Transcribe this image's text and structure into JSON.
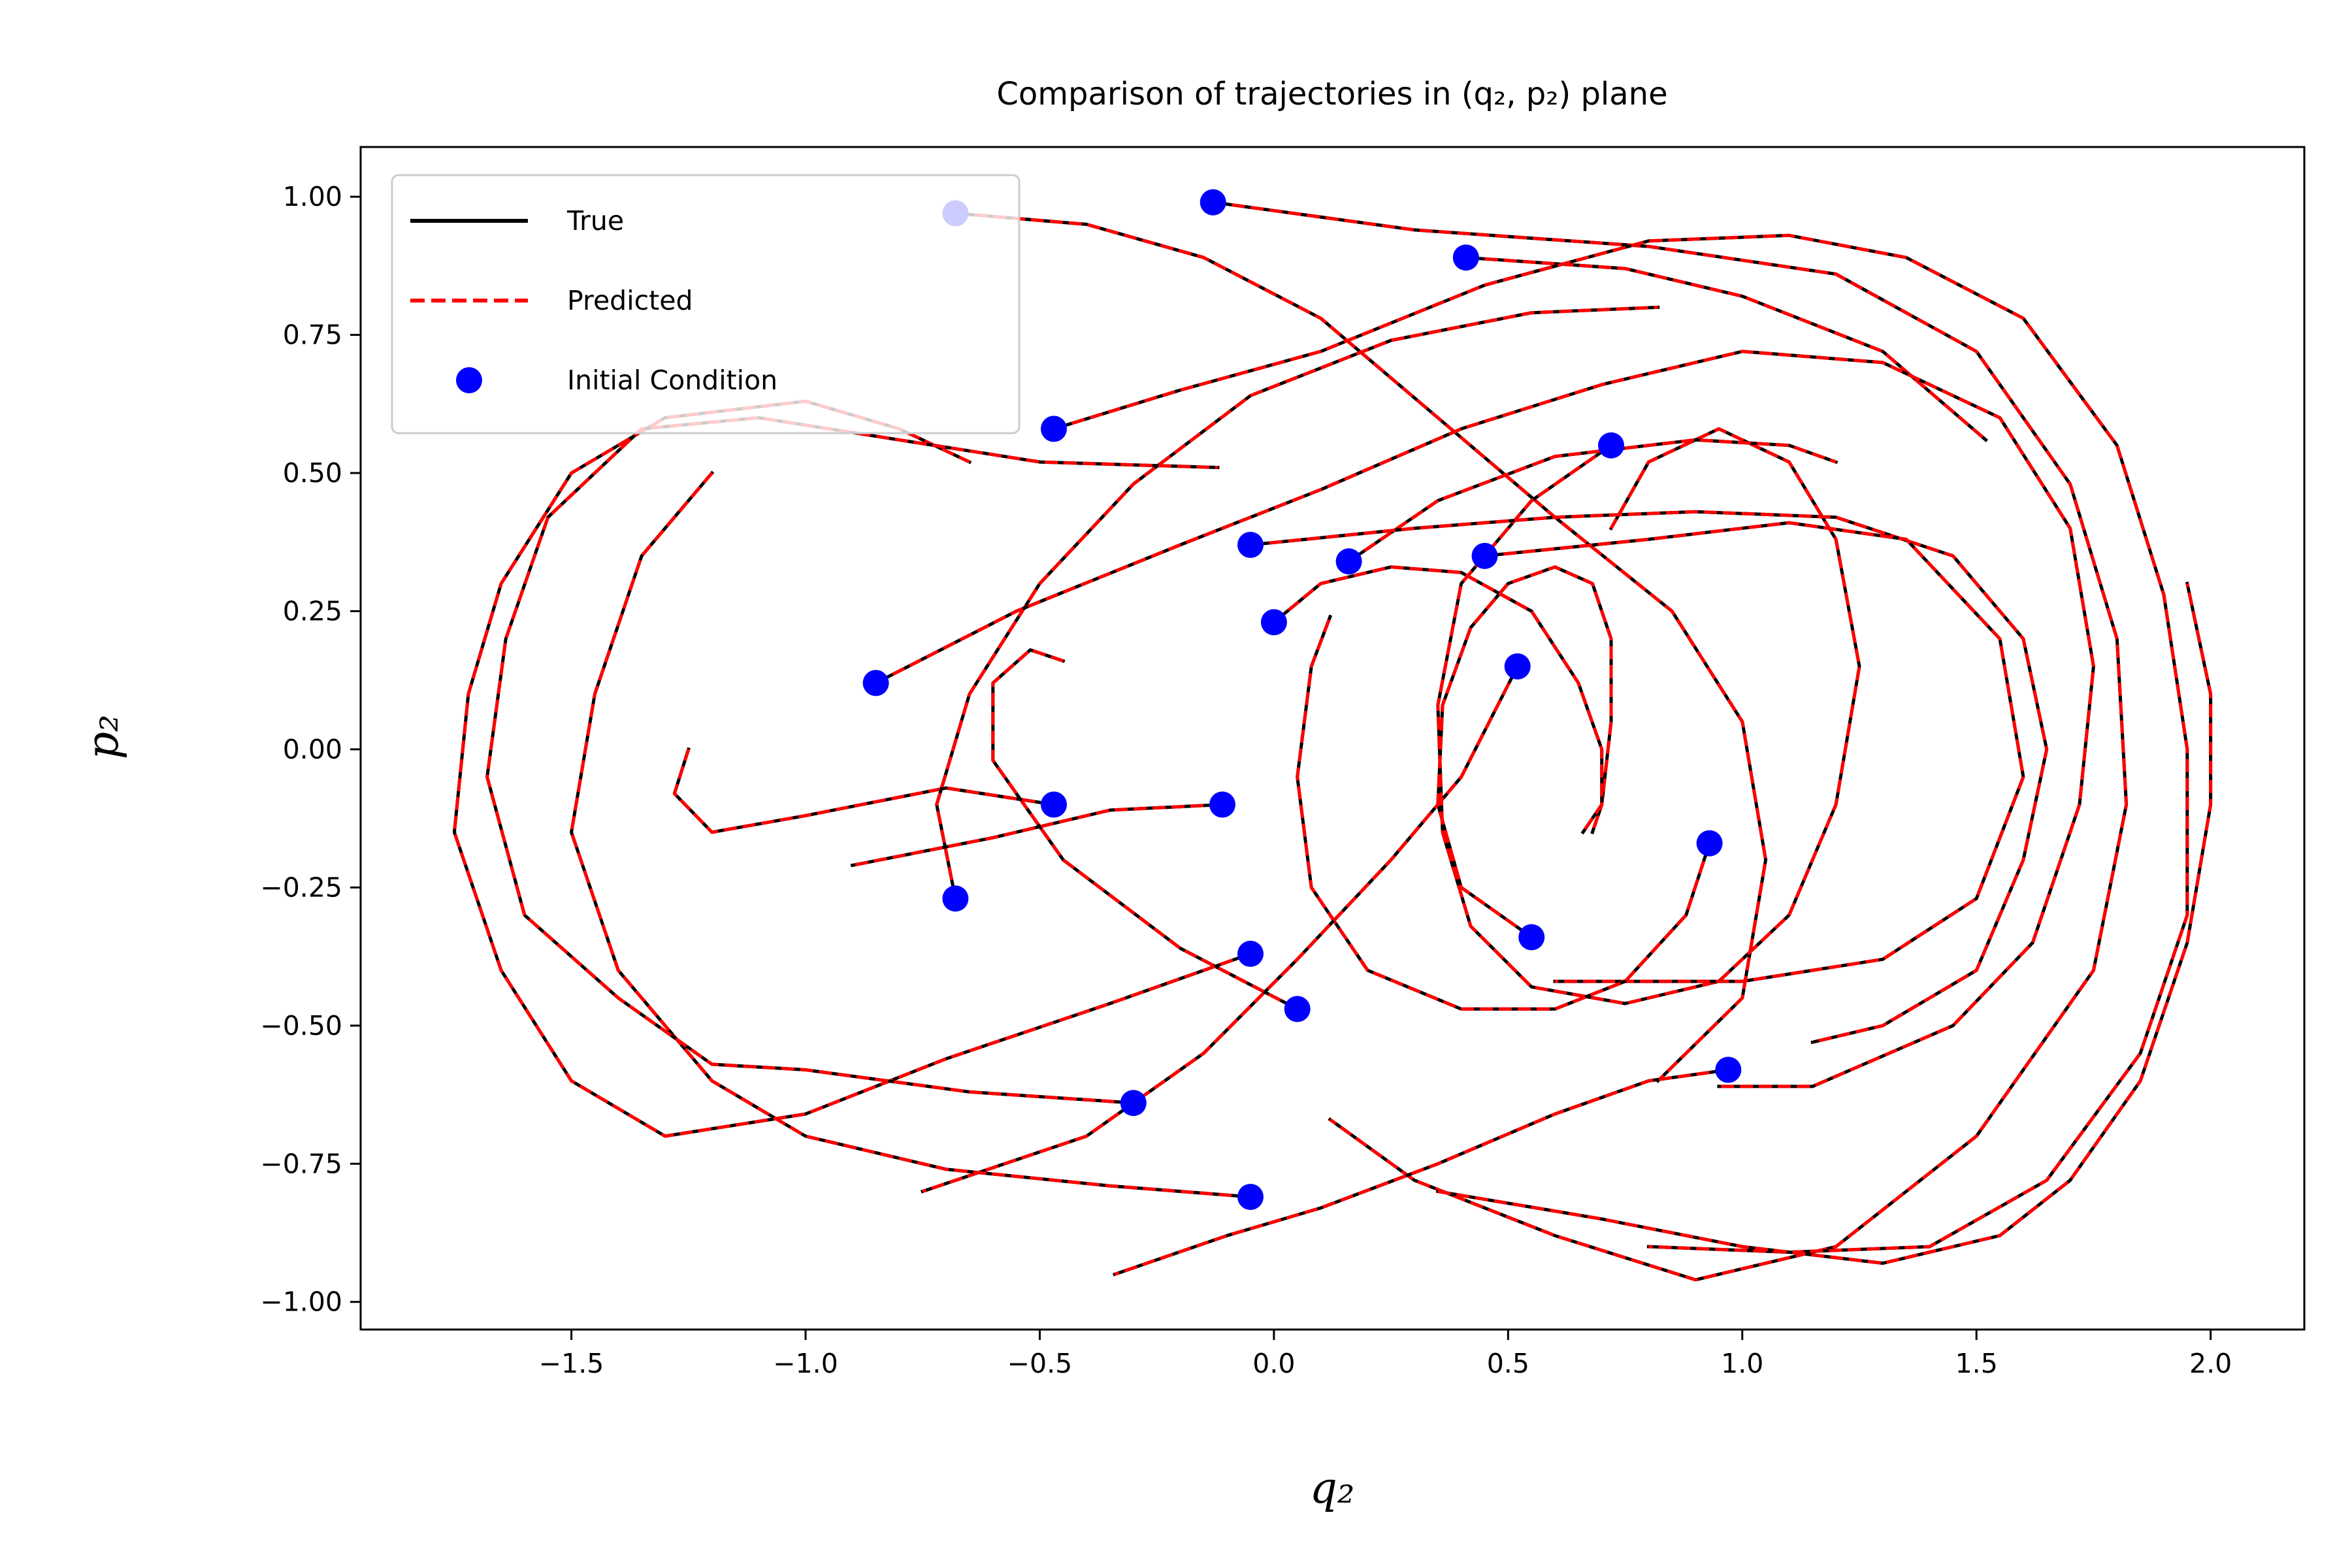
{
  "chart_data": {
    "type": "line",
    "title": "Comparison of trajectories in (q₂, p₂) plane",
    "xlabel": "q₂",
    "ylabel": "p₂",
    "xlim": [
      -1.95,
      2.2
    ],
    "ylim": [
      -1.05,
      1.09
    ],
    "xticks": [
      -1.5,
      -1.0,
      -0.5,
      0.0,
      0.5,
      1.0,
      1.5,
      2.0
    ],
    "xtick_labels": [
      "−1.5",
      "−1.0",
      "−0.5",
      "0.0",
      "0.5",
      "1.0",
      "1.5",
      "2.0"
    ],
    "yticks": [
      1.0,
      0.75,
      0.5,
      0.25,
      0.0,
      -0.25,
      -0.5,
      -0.75,
      -1.0
    ],
    "ytick_labels": [
      "1.00",
      "0.75",
      "0.50",
      "0.25",
      "0.00",
      "−0.25",
      "−0.50",
      "−0.75",
      "−1.00"
    ],
    "grid": false,
    "legend_position": "top-left",
    "legend": [
      {
        "label": "True",
        "style": "solid",
        "color": "#000000"
      },
      {
        "label": "Predicted",
        "style": "dashed",
        "color": "#ff0000"
      },
      {
        "label": "Initial Condition",
        "style": "marker",
        "color": "#0000ff"
      }
    ],
    "colors": {
      "true": "#000000",
      "predicted": "#ff0000",
      "initial": "#0000ff"
    },
    "trajectories": [
      {
        "points": [
          [
            -0.13,
            0.99
          ],
          [
            0.3,
            0.94
          ],
          [
            0.8,
            0.91
          ],
          [
            1.2,
            0.86
          ],
          [
            1.5,
            0.72
          ],
          [
            1.7,
            0.48
          ],
          [
            1.8,
            0.2
          ],
          [
            1.82,
            -0.1
          ],
          [
            1.75,
            -0.4
          ],
          [
            1.5,
            -0.7
          ],
          [
            1.2,
            -0.9
          ],
          [
            0.9,
            -0.96
          ],
          [
            0.6,
            -0.88
          ],
          [
            0.3,
            -0.78
          ],
          [
            0.12,
            -0.67
          ]
        ]
      },
      {
        "points": [
          [
            0.41,
            0.89
          ],
          [
            0.75,
            0.87
          ],
          [
            1.0,
            0.82
          ],
          [
            1.3,
            0.72
          ],
          [
            1.52,
            0.56
          ]
        ]
      },
      {
        "points": [
          [
            -0.68,
            0.97
          ],
          [
            -0.4,
            0.95
          ],
          [
            -0.15,
            0.89
          ],
          [
            0.1,
            0.78
          ],
          [
            0.35,
            0.6
          ],
          [
            0.6,
            0.42
          ],
          [
            0.85,
            0.25
          ],
          [
            1.0,
            0.05
          ],
          [
            1.05,
            -0.2
          ],
          [
            1.0,
            -0.45
          ],
          [
            0.82,
            -0.6
          ]
        ]
      },
      {
        "points": [
          [
            0.72,
            0.55
          ],
          [
            0.55,
            0.45
          ],
          [
            0.4,
            0.3
          ],
          [
            0.35,
            0.08
          ],
          [
            0.36,
            -0.15
          ],
          [
            0.42,
            -0.32
          ],
          [
            0.55,
            -0.43
          ],
          [
            0.75,
            -0.46
          ],
          [
            0.95,
            -0.42
          ],
          [
            1.1,
            -0.3
          ],
          [
            1.2,
            -0.1
          ],
          [
            1.25,
            0.15
          ],
          [
            1.2,
            0.38
          ],
          [
            1.1,
            0.52
          ],
          [
            0.95,
            0.58
          ],
          [
            0.8,
            0.52
          ],
          [
            0.72,
            0.4
          ]
        ]
      },
      {
        "points": [
          [
            0.16,
            0.34
          ],
          [
            0.35,
            0.45
          ],
          [
            0.6,
            0.53
          ],
          [
            0.9,
            0.56
          ],
          [
            1.1,
            0.55
          ],
          [
            1.2,
            0.52
          ]
        ]
      },
      {
        "points": [
          [
            -0.05,
            0.37
          ],
          [
            0.3,
            0.4
          ],
          [
            0.6,
            0.42
          ],
          [
            0.9,
            0.43
          ],
          [
            1.2,
            0.42
          ],
          [
            1.45,
            0.35
          ],
          [
            1.6,
            0.2
          ],
          [
            1.65,
            0.0
          ],
          [
            1.6,
            -0.2
          ],
          [
            1.5,
            -0.4
          ],
          [
            1.3,
            -0.5
          ],
          [
            1.15,
            -0.53
          ]
        ]
      },
      {
        "points": [
          [
            0.45,
            0.35
          ],
          [
            0.8,
            0.38
          ],
          [
            1.1,
            0.41
          ],
          [
            1.35,
            0.38
          ],
          [
            1.55,
            0.2
          ],
          [
            1.6,
            -0.05
          ],
          [
            1.5,
            -0.27
          ],
          [
            1.3,
            -0.38
          ],
          [
            1.0,
            -0.42
          ],
          [
            0.6,
            -0.42
          ]
        ]
      },
      {
        "points": [
          [
            0.55,
            -0.34
          ],
          [
            0.4,
            -0.25
          ],
          [
            0.35,
            -0.1
          ],
          [
            0.36,
            0.08
          ],
          [
            0.42,
            0.22
          ],
          [
            0.5,
            0.3
          ],
          [
            0.6,
            0.33
          ],
          [
            0.68,
            0.3
          ],
          [
            0.72,
            0.2
          ],
          [
            0.72,
            0.05
          ],
          [
            0.7,
            -0.1
          ],
          [
            0.68,
            -0.15
          ]
        ]
      },
      {
        "points": [
          [
            0.0,
            0.23
          ],
          [
            0.1,
            0.3
          ],
          [
            0.25,
            0.33
          ],
          [
            0.4,
            0.32
          ],
          [
            0.55,
            0.25
          ],
          [
            0.65,
            0.12
          ],
          [
            0.7,
            0.0
          ],
          [
            0.7,
            -0.1
          ],
          [
            0.66,
            -0.15
          ]
        ]
      },
      {
        "points": [
          [
            0.93,
            -0.17
          ],
          [
            0.88,
            -0.3
          ],
          [
            0.75,
            -0.42
          ],
          [
            0.6,
            -0.47
          ],
          [
            0.4,
            -0.47
          ],
          [
            0.2,
            -0.4
          ],
          [
            0.08,
            -0.25
          ],
          [
            0.05,
            -0.05
          ],
          [
            0.08,
            0.15
          ],
          [
            0.12,
            0.24
          ]
        ]
      },
      {
        "points": [
          [
            0.52,
            0.15
          ],
          [
            0.4,
            -0.05
          ],
          [
            0.25,
            -0.2
          ],
          [
            0.05,
            -0.38
          ],
          [
            -0.15,
            -0.55
          ],
          [
            -0.4,
            -0.7
          ],
          [
            -0.75,
            -0.8
          ]
        ]
      },
      {
        "points": [
          [
            0.05,
            -0.47
          ],
          [
            -0.2,
            -0.36
          ],
          [
            -0.45,
            -0.2
          ],
          [
            -0.6,
            -0.02
          ],
          [
            -0.6,
            0.12
          ],
          [
            -0.52,
            0.18
          ],
          [
            -0.45,
            0.16
          ]
        ]
      },
      {
        "points": [
          [
            -0.11,
            -0.1
          ],
          [
            -0.35,
            -0.11
          ],
          [
            -0.6,
            -0.16
          ],
          [
            -0.9,
            -0.21
          ]
        ]
      },
      {
        "points": [
          [
            -0.47,
            -0.1
          ],
          [
            -0.7,
            -0.07
          ],
          [
            -1.0,
            -0.12
          ],
          [
            -1.2,
            -0.15
          ],
          [
            -1.28,
            -0.08
          ],
          [
            -1.25,
            0.0
          ]
        ]
      },
      {
        "points": [
          [
            -0.68,
            -0.27
          ],
          [
            -0.72,
            -0.1
          ],
          [
            -0.65,
            0.1
          ],
          [
            -0.5,
            0.3
          ],
          [
            -0.3,
            0.48
          ],
          [
            -0.05,
            0.64
          ],
          [
            0.25,
            0.74
          ],
          [
            0.55,
            0.79
          ],
          [
            0.82,
            0.8
          ]
        ]
      },
      {
        "points": [
          [
            -0.85,
            0.12
          ],
          [
            -0.55,
            0.25
          ],
          [
            -0.2,
            0.37
          ],
          [
            0.1,
            0.47
          ],
          [
            0.4,
            0.58
          ],
          [
            0.7,
            0.66
          ],
          [
            1.0,
            0.72
          ],
          [
            1.3,
            0.7
          ],
          [
            1.55,
            0.6
          ],
          [
            1.7,
            0.4
          ],
          [
            1.75,
            0.15
          ],
          [
            1.72,
            -0.1
          ],
          [
            1.62,
            -0.35
          ],
          [
            1.45,
            -0.5
          ],
          [
            1.15,
            -0.61
          ],
          [
            0.95,
            -0.61
          ]
        ]
      },
      {
        "points": [
          [
            -0.47,
            0.58
          ],
          [
            -0.2,
            0.65
          ],
          [
            0.1,
            0.72
          ],
          [
            0.45,
            0.84
          ],
          [
            0.8,
            0.92
          ],
          [
            1.1,
            0.93
          ],
          [
            1.35,
            0.89
          ],
          [
            1.6,
            0.78
          ],
          [
            1.8,
            0.55
          ],
          [
            1.9,
            0.28
          ],
          [
            1.95,
            0.0
          ],
          [
            1.95,
            -0.3
          ],
          [
            1.85,
            -0.55
          ],
          [
            1.65,
            -0.78
          ],
          [
            1.4,
            -0.9
          ],
          [
            1.1,
            -0.91
          ],
          [
            0.8,
            -0.9
          ]
        ]
      },
      {
        "points": [
          [
            -0.05,
            -0.37
          ],
          [
            -0.35,
            -0.46
          ],
          [
            -0.7,
            -0.56
          ],
          [
            -1.0,
            -0.66
          ],
          [
            -1.3,
            -0.7
          ],
          [
            -1.5,
            -0.6
          ],
          [
            -1.65,
            -0.4
          ],
          [
            -1.75,
            -0.15
          ],
          [
            -1.72,
            0.1
          ],
          [
            -1.65,
            0.3
          ],
          [
            -1.5,
            0.5
          ],
          [
            -1.3,
            0.6
          ],
          [
            -1.0,
            0.63
          ],
          [
            -0.8,
            0.58
          ],
          [
            -0.65,
            0.52
          ]
        ]
      },
      {
        "points": [
          [
            -0.05,
            -0.81
          ],
          [
            -0.35,
            -0.79
          ],
          [
            -0.7,
            -0.76
          ],
          [
            -1.0,
            -0.7
          ],
          [
            -1.2,
            -0.6
          ],
          [
            -1.4,
            -0.4
          ],
          [
            -1.5,
            -0.15
          ],
          [
            -1.45,
            0.1
          ],
          [
            -1.35,
            0.35
          ],
          [
            -1.2,
            0.5
          ]
        ]
      },
      {
        "points": [
          [
            -0.3,
            -0.64
          ],
          [
            -0.65,
            -0.62
          ],
          [
            -1.0,
            -0.58
          ],
          [
            -1.2,
            -0.57
          ],
          [
            -1.4,
            -0.45
          ],
          [
            -1.6,
            -0.3
          ],
          [
            -1.68,
            -0.05
          ],
          [
            -1.64,
            0.2
          ],
          [
            -1.55,
            0.42
          ],
          [
            -1.35,
            0.58
          ],
          [
            -1.1,
            0.6
          ],
          [
            -0.8,
            0.56
          ],
          [
            -0.5,
            0.52
          ],
          [
            -0.12,
            0.51
          ]
        ]
      },
      {
        "points": [
          [
            0.97,
            -0.58
          ],
          [
            0.8,
            -0.6
          ],
          [
            0.6,
            -0.66
          ],
          [
            0.35,
            -0.75
          ],
          [
            0.1,
            -0.83
          ],
          [
            -0.1,
            -0.88
          ],
          [
            -0.34,
            -0.95
          ]
        ]
      },
      {
        "points": [
          [
            0.35,
            -0.8
          ],
          [
            0.7,
            -0.85
          ],
          [
            1.0,
            -0.9
          ],
          [
            1.3,
            -0.93
          ],
          [
            1.55,
            -0.88
          ],
          [
            1.7,
            -0.78
          ],
          [
            1.85,
            -0.6
          ],
          [
            1.95,
            -0.35
          ],
          [
            2.0,
            -0.1
          ],
          [
            2.0,
            0.1
          ],
          [
            1.95,
            0.3
          ]
        ]
      }
    ],
    "initial_conditions": [
      [
        -0.13,
        0.99
      ],
      [
        -0.68,
        0.97
      ],
      [
        0.41,
        0.89
      ],
      [
        -0.47,
        0.58
      ],
      [
        0.72,
        0.55
      ],
      [
        -0.05,
        0.37
      ],
      [
        0.16,
        0.34
      ],
      [
        0.45,
        0.35
      ],
      [
        0.0,
        0.23
      ],
      [
        -0.85,
        0.12
      ],
      [
        0.52,
        0.15
      ],
      [
        -0.11,
        -0.1
      ],
      [
        -0.47,
        -0.1
      ],
      [
        0.93,
        -0.17
      ],
      [
        -0.68,
        -0.27
      ],
      [
        0.55,
        -0.34
      ],
      [
        -0.05,
        -0.37
      ],
      [
        0.05,
        -0.47
      ],
      [
        0.97,
        -0.58
      ],
      [
        -0.3,
        -0.64
      ],
      [
        -0.05,
        -0.81
      ]
    ]
  }
}
